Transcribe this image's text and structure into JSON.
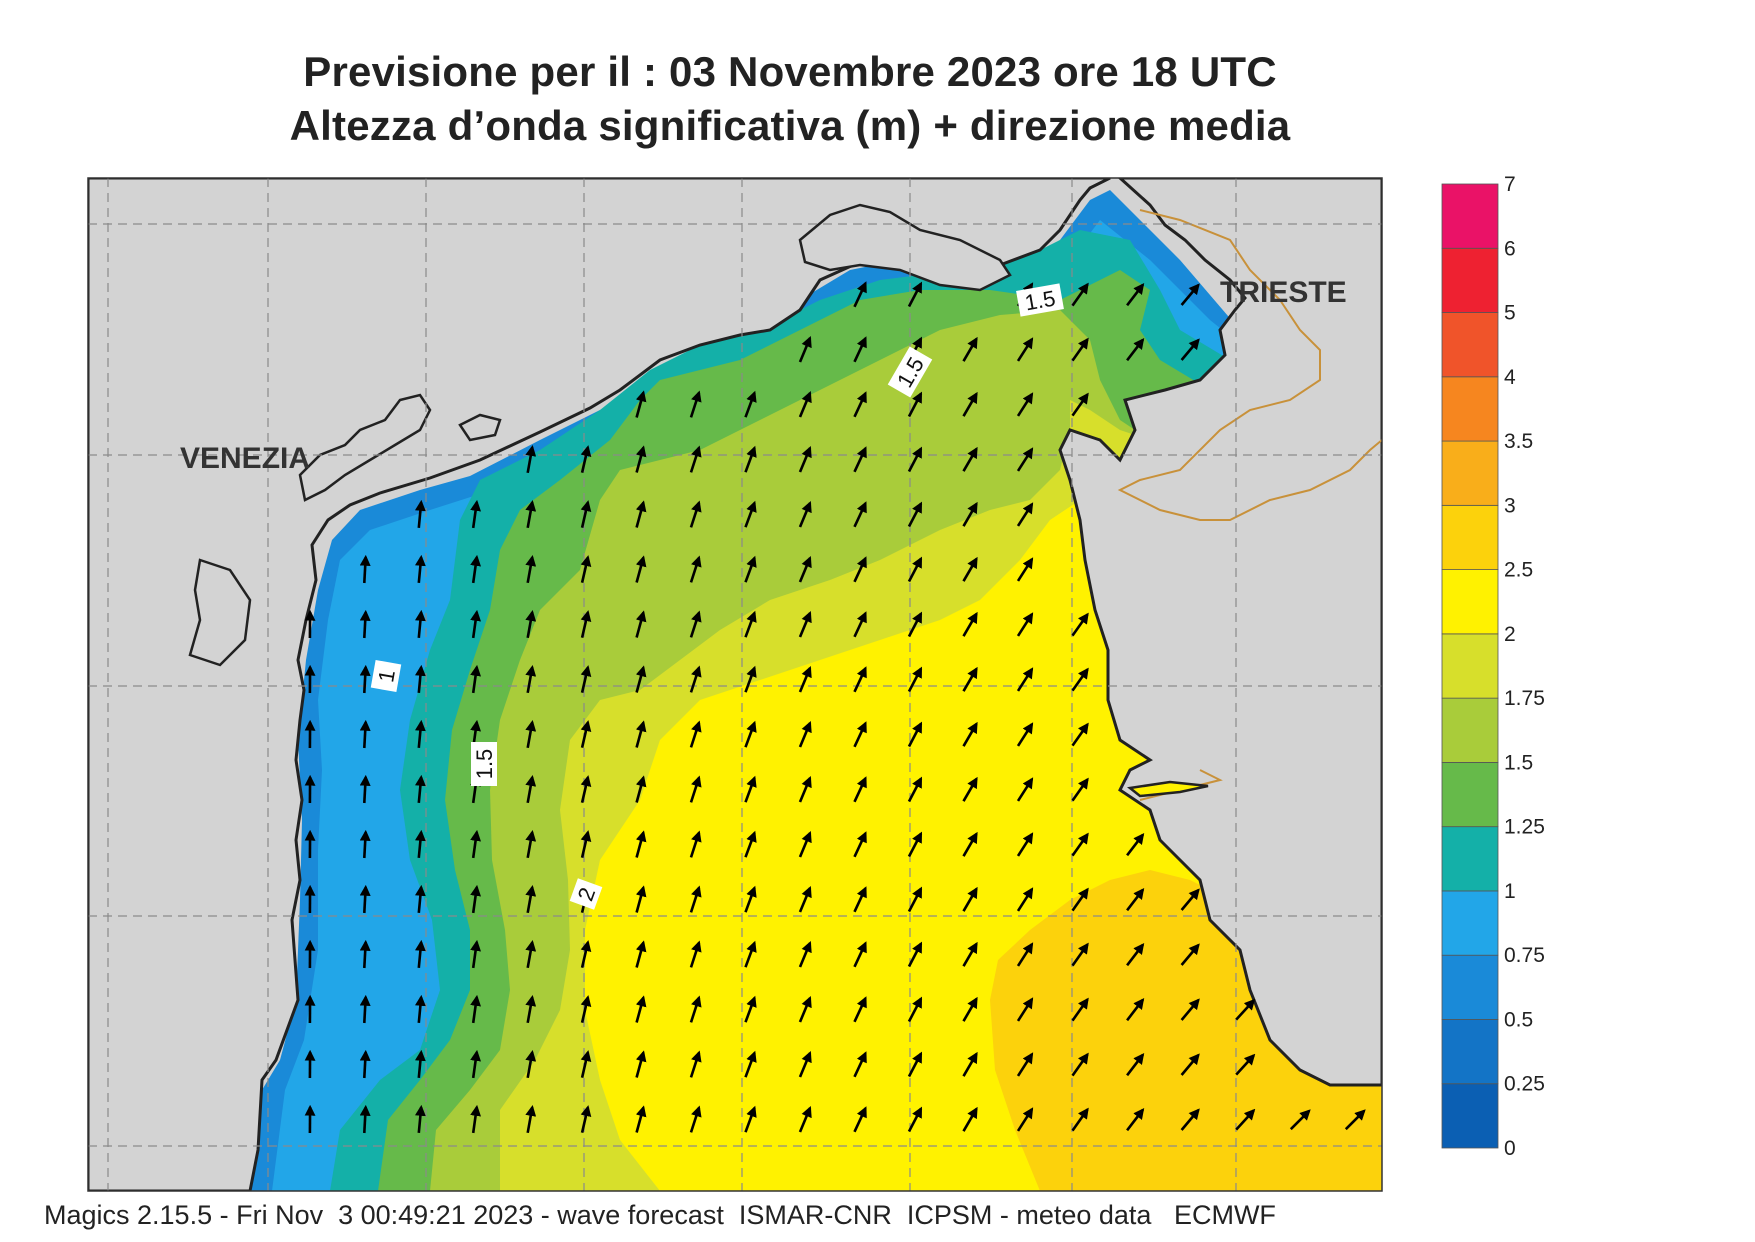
{
  "title_line1": "Previsione per il  :  03 Novembre  2023   ore 18 UTC",
  "title_line2": "Altezza d’onda significativa (m) + direzione media",
  "cities": {
    "venezia": "VENEZIA",
    "trieste": "TRIESTE"
  },
  "contour_labels": [
    "1",
    "1.5",
    "2",
    "1.5",
    "1.5"
  ],
  "colorbar": {
    "ticks": [
      "0",
      "0.25",
      "0.5",
      "0.75",
      "1",
      "1.25",
      "1.5",
      "1.75",
      "2",
      "2.5",
      "3",
      "3.5",
      "4",
      "5",
      "6",
      "7"
    ],
    "colors": [
      "#0b5fb3",
      "#1374c6",
      "#1a8ad8",
      "#22a6e8",
      "#14b0a8",
      "#66ba4a",
      "#a9cc3a",
      "#d7df2b",
      "#fff200",
      "#fcd20c",
      "#f9ae1a",
      "#f6861f",
      "#f0542a",
      "#ee2131",
      "#ea1267"
    ]
  },
  "footer": "Magics 2.15.5 - Fri Nov  3 00:49:21 2023 - wave forecast  ISMAR-CNR  ICPSM - meteo data   ECMWF"
}
